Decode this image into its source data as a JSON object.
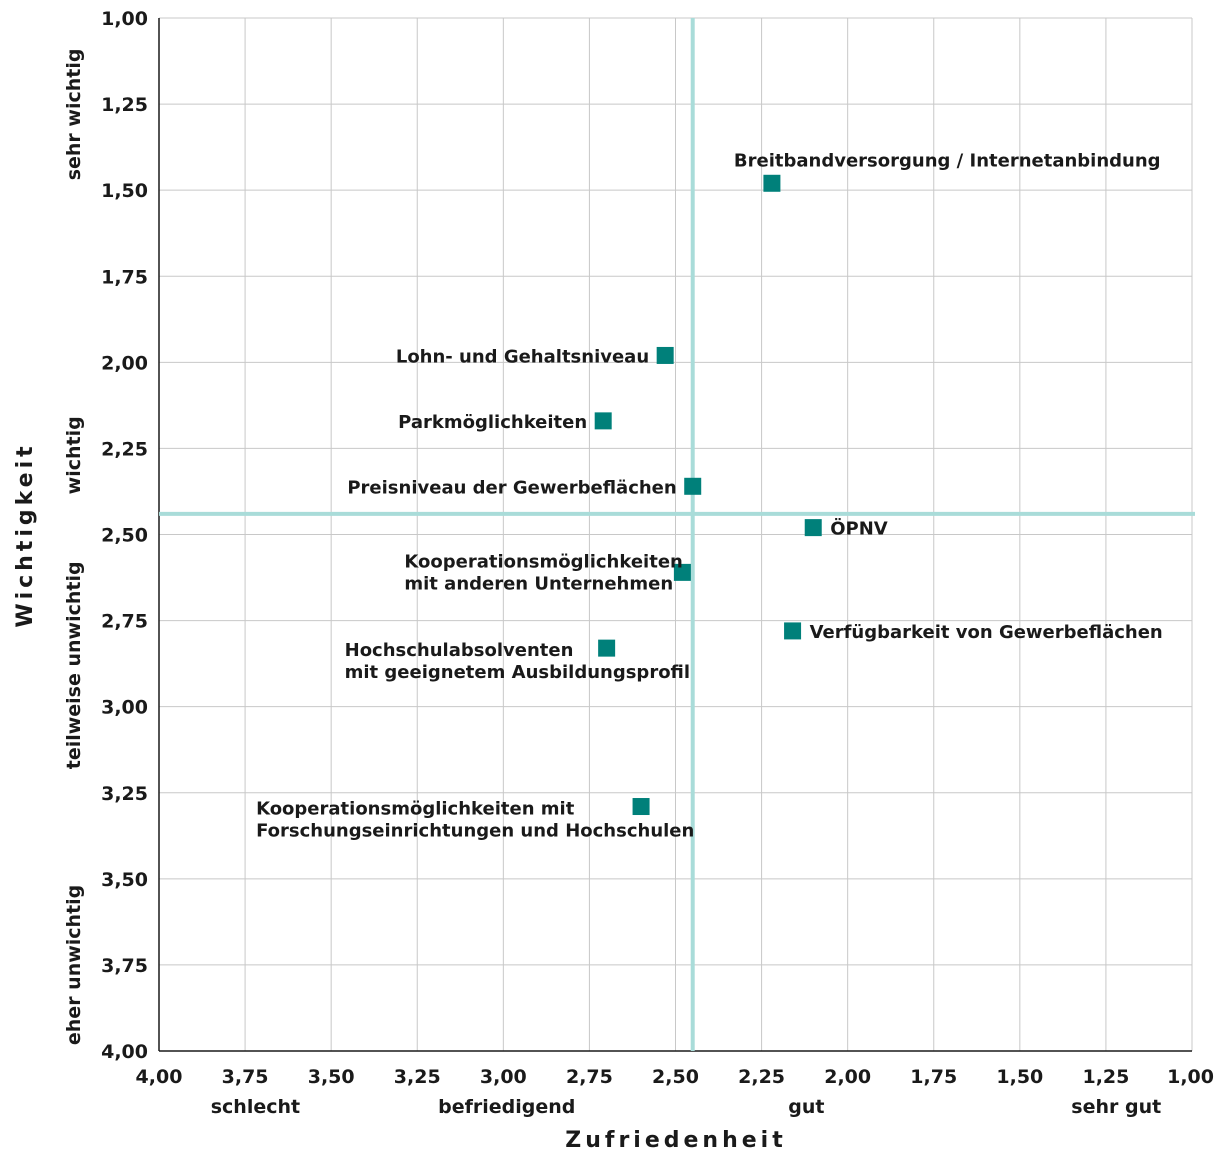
{
  "chart_data": {
    "type": "scatter",
    "xlabel": "Zufriedenheit",
    "ylabel": "Wichtigkeit",
    "xlim": [
      4.0,
      1.0
    ],
    "ylim": [
      1.0,
      4.0
    ],
    "x_ticks": [
      "4,00",
      "3,75",
      "3,50",
      "3,25",
      "3,00",
      "2,75",
      "2,50",
      "2,25",
      "2,00",
      "1,75",
      "1,50",
      "1,25",
      "1,00"
    ],
    "y_ticks": [
      "1,00",
      "1,25",
      "1,50",
      "1,75",
      "2,00",
      "2,25",
      "2,50",
      "2,75",
      "3,00",
      "3,25",
      "3,50",
      "3,75",
      "4,00"
    ],
    "x_categories": [
      {
        "label": "schlecht",
        "at": 3.72
      },
      {
        "label": "befriedigend",
        "at": 2.99
      },
      {
        "label": "gut",
        "at": 2.12
      },
      {
        "label": "sehr gut",
        "at": 1.22
      }
    ],
    "y_categories": [
      {
        "label": "sehr wichtig",
        "at": 1.28
      },
      {
        "label": "wichtig",
        "at": 2.27
      },
      {
        "label": "teilweise unwichtig",
        "at": 2.88
      },
      {
        "label": "eher unwichtig",
        "at": 3.75
      }
    ],
    "reference_lines": {
      "x": 2.45,
      "y": 2.44
    },
    "grid": true,
    "marker_color": "#00807a",
    "reference_line_color": "#a9dcd9",
    "points": [
      {
        "label": [
          "Breitbandversorgung / Internetanbindung"
        ],
        "x": 2.22,
        "y": 1.48,
        "label_side": "above"
      },
      {
        "label": [
          "Lohn- und Gehaltsniveau"
        ],
        "x": 2.53,
        "y": 1.98,
        "label_side": "left"
      },
      {
        "label": [
          "Parkmöglichkeiten"
        ],
        "x": 2.71,
        "y": 2.17,
        "label_side": "left"
      },
      {
        "label": [
          "Preisniveau der Gewerbeflächen"
        ],
        "x": 2.45,
        "y": 2.36,
        "label_side": "left"
      },
      {
        "label": [
          "ÖPNV"
        ],
        "x": 2.1,
        "y": 2.48,
        "label_side": "right"
      },
      {
        "label": [
          "Kooperationsmöglichkeiten",
          "mit anderen Unternehmen"
        ],
        "x": 2.48,
        "y": 2.61,
        "label_side": "left"
      },
      {
        "label": [
          "Verfügbarkeit von Gewerbeflächen"
        ],
        "x": 2.16,
        "y": 2.78,
        "label_side": "right"
      },
      {
        "label": [
          "Hochschulabsolventen",
          "mit geeignetem Ausbildungsprofil"
        ],
        "x": 2.7,
        "y": 2.83,
        "label_side": "left-below"
      },
      {
        "label": [
          "Kooperationsmöglichkeiten mit",
          "Forschungseinrichtungen und Hochschulen"
        ],
        "x": 2.6,
        "y": 3.29,
        "label_side": "left-below"
      }
    ]
  }
}
